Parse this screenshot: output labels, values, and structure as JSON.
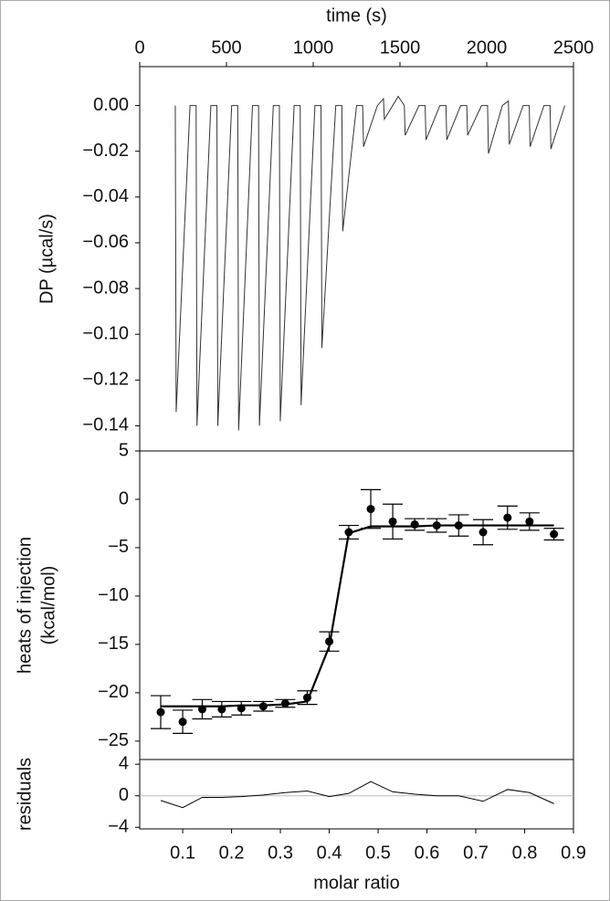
{
  "chart_data": [
    {
      "type": "line",
      "xlabel": "time (s)",
      "ylabel": [
        "DP (µcal/s)"
      ],
      "xaxis_position": "top",
      "xlim": [
        0,
        2500
      ],
      "xticks": [
        0,
        500,
        1000,
        1500,
        2000,
        2500
      ],
      "ylim": [
        -0.151,
        0.017
      ],
      "yticks": [
        {
          "value": 0,
          "label": "0.00"
        },
        {
          "value": -0.02,
          "label": "−0.02"
        },
        {
          "value": -0.04,
          "label": "−0.04"
        },
        {
          "value": -0.06,
          "label": "−0.06"
        },
        {
          "value": -0.08,
          "label": "−0.08"
        },
        {
          "value": -0.1,
          "label": "−0.10"
        },
        {
          "value": -0.12,
          "label": "−0.12"
        },
        {
          "value": -0.14,
          "label": "−0.14"
        }
      ],
      "series": [
        {
          "kind": "line",
          "color": "#333333",
          "x": [
            205,
            210,
            290,
            325,
            330,
            410,
            445,
            450,
            530,
            565,
            570,
            650,
            685,
            690,
            770,
            805,
            810,
            890,
            925,
            930,
            1010,
            1045,
            1050,
            1130,
            1165,
            1170,
            1250,
            1285,
            1290,
            1370,
            1405,
            1410,
            1490,
            1525,
            1530,
            1610,
            1645,
            1650,
            1730,
            1765,
            1770,
            1850,
            1885,
            1890,
            1970,
            2005,
            2010,
            2090,
            2125,
            2130,
            2210,
            2245,
            2250,
            2330,
            2365,
            2370,
            2450
          ],
          "values": [
            0,
            -0.134,
            0,
            0,
            -0.14,
            0,
            0,
            -0.14,
            0,
            0,
            -0.142,
            0,
            0,
            -0.14,
            0,
            0,
            -0.138,
            0,
            0,
            -0.131,
            0,
            0,
            -0.106,
            0,
            0,
            -0.055,
            0,
            0,
            -0.018,
            0,
            0.003,
            -0.006,
            0.004,
            0,
            -0.013,
            0,
            0,
            -0.015,
            0,
            0,
            -0.015,
            0,
            0,
            -0.013,
            0,
            0,
            -0.021,
            0,
            0.002,
            -0.017,
            0,
            0,
            -0.018,
            0,
            0,
            -0.019,
            0
          ]
        }
      ]
    },
    {
      "type": "scatter",
      "ylabel": [
        "heats of injection",
        "(kcal/mol)"
      ],
      "xlim": [
        0.012,
        0.9
      ],
      "ylim": [
        -26.9,
        5
      ],
      "yticks": [
        5,
        0,
        {
          "value": -5,
          "label": "−5"
        },
        {
          "value": -10,
          "label": "−10"
        },
        {
          "value": -15,
          "label": "−15"
        },
        {
          "value": -20,
          "label": "−20"
        },
        {
          "value": -25,
          "label": "−25"
        }
      ],
      "x": [
        0.055,
        0.1,
        0.14,
        0.18,
        0.22,
        0.265,
        0.31,
        0.355,
        0.4,
        0.44,
        0.485,
        0.53,
        0.575,
        0.62,
        0.665,
        0.715,
        0.765,
        0.81,
        0.86
      ],
      "series": [
        {
          "kind": "scatter",
          "color": "#000000",
          "values": [
            -22.0,
            -23.0,
            -21.7,
            -21.7,
            -21.6,
            -21.4,
            -21.1,
            -20.5,
            -14.7,
            -3.4,
            -1.0,
            -2.3,
            -2.6,
            -2.7,
            -2.7,
            -3.4,
            -1.9,
            -2.3,
            -3.6
          ],
          "errors": [
            1.7,
            1.2,
            1.0,
            0.8,
            0.7,
            0.5,
            0.4,
            0.7,
            1.0,
            0.7,
            2.0,
            1.8,
            0.6,
            0.7,
            1.1,
            1.3,
            1.2,
            0.9,
            0.6
          ]
        },
        {
          "kind": "line",
          "color": "#000000",
          "values": [
            -21.4,
            -21.4,
            -21.4,
            -21.4,
            -21.3,
            -21.3,
            -21.2,
            -20.9,
            -15.2,
            -3.5,
            -2.8,
            -2.8,
            -2.8,
            -2.7,
            -2.7,
            -2.7,
            -2.7,
            -2.7,
            -2.7
          ]
        }
      ]
    },
    {
      "type": "line",
      "xlabel": "molar ratio",
      "ylabel": [
        "residuals"
      ],
      "xlim": [
        0.012,
        0.9
      ],
      "xticks": [
        0.1,
        0.2,
        0.3,
        0.4,
        0.5,
        0.6,
        0.7,
        0.8,
        0.9
      ],
      "ylim": [
        -4.2,
        4.6
      ],
      "yticks": [
        4,
        0,
        {
          "value": -4,
          "label": "−4"
        }
      ],
      "hline": 0,
      "x": [
        0.055,
        0.1,
        0.14,
        0.18,
        0.22,
        0.265,
        0.31,
        0.355,
        0.4,
        0.44,
        0.485,
        0.53,
        0.575,
        0.62,
        0.665,
        0.715,
        0.765,
        0.81,
        0.86
      ],
      "series": [
        {
          "kind": "line",
          "color": "#000000",
          "values": [
            -0.6,
            -1.5,
            -0.2,
            -0.2,
            -0.1,
            0.1,
            0.4,
            0.6,
            -0.1,
            0.3,
            1.8,
            0.5,
            0.2,
            0.0,
            0.0,
            -0.7,
            0.8,
            0.4,
            -1.0
          ]
        }
      ]
    }
  ]
}
